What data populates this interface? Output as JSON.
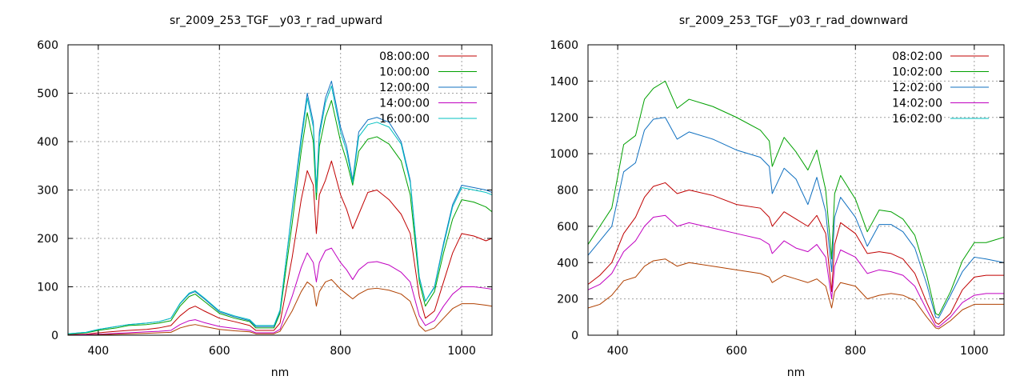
{
  "chart_data": [
    {
      "type": "line",
      "title": "sr_2009_253_TGF__y03_r_rad_upward",
      "xlabel": "nm",
      "ylabel": "",
      "xlim": [
        350,
        1050
      ],
      "ylim": [
        0,
        600
      ],
      "xticks": [
        400,
        600,
        800,
        1000
      ],
      "yticks": [
        0,
        100,
        200,
        300,
        400,
        500,
        600
      ],
      "grid": true,
      "legend_position": "top-right",
      "series": [
        {
          "name": "08:00:00",
          "color": "#c00000",
          "x": [
            350,
            380,
            400,
            430,
            450,
            480,
            500,
            520,
            535,
            550,
            560,
            575,
            600,
            625,
            650,
            660,
            690,
            700,
            720,
            735,
            745,
            755,
            760,
            765,
            775,
            785,
            800,
            810,
            820,
            830,
            845,
            860,
            880,
            900,
            915,
            930,
            940,
            955,
            970,
            985,
            1000,
            1020,
            1040,
            1050
          ],
          "y": [
            1,
            2,
            5,
            8,
            10,
            12,
            15,
            20,
            40,
            55,
            60,
            50,
            35,
            28,
            20,
            10,
            10,
            25,
            160,
            280,
            340,
            310,
            210,
            290,
            320,
            360,
            290,
            260,
            220,
            250,
            295,
            300,
            280,
            250,
            210,
            80,
            35,
            50,
            110,
            170,
            210,
            205,
            195,
            200
          ]
        },
        {
          "name": "10:00:00",
          "color": "#00a000",
          "x": [
            350,
            380,
            400,
            430,
            450,
            480,
            500,
            520,
            535,
            550,
            560,
            575,
            600,
            625,
            650,
            660,
            690,
            700,
            720,
            735,
            745,
            755,
            760,
            765,
            775,
            785,
            800,
            810,
            820,
            830,
            845,
            860,
            880,
            900,
            915,
            930,
            940,
            955,
            970,
            985,
            1000,
            1020,
            1040,
            1050
          ],
          "y": [
            2,
            5,
            10,
            15,
            20,
            22,
            25,
            30,
            60,
            80,
            85,
            70,
            45,
            35,
            28,
            15,
            15,
            45,
            230,
            380,
            460,
            400,
            280,
            390,
            450,
            485,
            400,
            360,
            310,
            380,
            405,
            410,
            395,
            360,
            290,
            110,
            60,
            90,
            170,
            240,
            280,
            275,
            265,
            255
          ]
        },
        {
          "name": "12:00:00",
          "color": "#1070c0",
          "x": [
            350,
            380,
            400,
            430,
            450,
            480,
            500,
            520,
            535,
            550,
            560,
            575,
            600,
            625,
            650,
            660,
            690,
            700,
            720,
            735,
            745,
            755,
            760,
            765,
            775,
            785,
            800,
            810,
            820,
            830,
            845,
            860,
            880,
            900,
            915,
            930,
            940,
            955,
            970,
            985,
            1000,
            1020,
            1040,
            1050
          ],
          "y": [
            3,
            6,
            12,
            18,
            22,
            25,
            28,
            35,
            65,
            85,
            90,
            75,
            48,
            38,
            30,
            18,
            18,
            50,
            260,
            410,
            500,
            440,
            300,
            420,
            490,
            525,
            430,
            390,
            320,
            420,
            445,
            450,
            440,
            400,
            320,
            120,
            70,
            100,
            190,
            270,
            310,
            305,
            300,
            295
          ]
        },
        {
          "name": "14:00:00",
          "color": "#c000c0",
          "x": [
            350,
            380,
            400,
            430,
            450,
            480,
            500,
            520,
            535,
            550,
            560,
            575,
            600,
            625,
            650,
            660,
            690,
            700,
            720,
            735,
            745,
            755,
            760,
            765,
            775,
            785,
            800,
            810,
            820,
            830,
            845,
            860,
            880,
            900,
            915,
            930,
            940,
            955,
            970,
            985,
            1000,
            1020,
            1040,
            1050
          ],
          "y": [
            0,
            1,
            2,
            4,
            5,
            7,
            8,
            10,
            22,
            30,
            32,
            26,
            18,
            14,
            10,
            5,
            5,
            12,
            80,
            140,
            170,
            150,
            110,
            150,
            175,
            180,
            150,
            135,
            115,
            135,
            150,
            152,
            145,
            130,
            110,
            40,
            20,
            30,
            60,
            85,
            100,
            100,
            97,
            95
          ]
        },
        {
          "name": "16:00:00",
          "color": "#00c0c0",
          "x": [
            350,
            380,
            400,
            430,
            450,
            480,
            500,
            520,
            535,
            550,
            560,
            575,
            600,
            625,
            650,
            660,
            690,
            700,
            720,
            735,
            745,
            755,
            760,
            765,
            775,
            785,
            800,
            810,
            820,
            830,
            845,
            860,
            880,
            900,
            915,
            930,
            940,
            955,
            970,
            985,
            1000,
            1020,
            1040,
            1050
          ],
          "y": [
            3,
            6,
            12,
            18,
            22,
            25,
            28,
            35,
            66,
            87,
            92,
            77,
            50,
            40,
            32,
            20,
            20,
            52,
            255,
            400,
            490,
            430,
            295,
            410,
            480,
            515,
            420,
            380,
            315,
            410,
            435,
            440,
            430,
            395,
            315,
            118,
            70,
            98,
            185,
            265,
            305,
            300,
            295,
            290
          ]
        },
        {
          "name": "",
          "color": "#b04000",
          "x": [
            350,
            380,
            400,
            430,
            450,
            480,
            500,
            520,
            535,
            550,
            560,
            575,
            600,
            625,
            650,
            660,
            690,
            700,
            720,
            735,
            745,
            755,
            760,
            765,
            775,
            785,
            800,
            810,
            820,
            830,
            845,
            860,
            880,
            900,
            915,
            930,
            940,
            955,
            970,
            985,
            1000,
            1020,
            1040,
            1050
          ],
          "y": [
            0,
            0,
            1,
            2,
            3,
            4,
            5,
            6,
            15,
            20,
            22,
            18,
            12,
            9,
            7,
            3,
            3,
            8,
            50,
            90,
            110,
            100,
            60,
            90,
            110,
            115,
            95,
            85,
            75,
            85,
            95,
            97,
            93,
            85,
            70,
            20,
            8,
            15,
            35,
            55,
            65,
            65,
            62,
            60
          ]
        }
      ]
    },
    {
      "type": "line",
      "title": "sr_2009_253_TGF__y03_r_rad_downward",
      "xlabel": "nm",
      "ylabel": "",
      "xlim": [
        350,
        1050
      ],
      "ylim": [
        0,
        1600
      ],
      "xticks": [
        400,
        600,
        800,
        1000
      ],
      "yticks": [
        0,
        200,
        400,
        600,
        800,
        1000,
        1200,
        1400,
        1600
      ],
      "grid": true,
      "legend_position": "top-right",
      "series": [
        {
          "name": "08:02:00",
          "color": "#c00000",
          "x": [
            350,
            370,
            390,
            410,
            430,
            445,
            460,
            480,
            500,
            520,
            560,
            600,
            640,
            655,
            660,
            680,
            700,
            720,
            735,
            750,
            760,
            765,
            775,
            800,
            820,
            840,
            860,
            880,
            900,
            920,
            935,
            940,
            960,
            980,
            1000,
            1020,
            1050
          ],
          "y": [
            280,
            330,
            400,
            560,
            650,
            760,
            820,
            840,
            780,
            800,
            770,
            720,
            700,
            650,
            600,
            680,
            640,
            600,
            660,
            560,
            240,
            500,
            620,
            560,
            450,
            460,
            450,
            420,
            340,
            180,
            70,
            60,
            120,
            250,
            320,
            330,
            330
          ]
        },
        {
          "name": "10:02:00",
          "color": "#00a000",
          "x": [
            350,
            370,
            390,
            410,
            430,
            445,
            460,
            480,
            500,
            520,
            560,
            600,
            640,
            655,
            660,
            680,
            700,
            720,
            735,
            750,
            760,
            765,
            775,
            800,
            820,
            840,
            860,
            880,
            900,
            920,
            935,
            940,
            960,
            980,
            1000,
            1020,
            1050
          ],
          "y": [
            500,
            600,
            700,
            1050,
            1100,
            1300,
            1360,
            1400,
            1250,
            1300,
            1260,
            1200,
            1130,
            1070,
            930,
            1090,
            1010,
            910,
            1020,
            800,
            420,
            780,
            880,
            750,
            570,
            690,
            680,
            640,
            550,
            330,
            120,
            110,
            240,
            410,
            510,
            510,
            540
          ]
        },
        {
          "name": "12:02:00",
          "color": "#1070c0",
          "x": [
            350,
            370,
            390,
            410,
            430,
            445,
            460,
            480,
            500,
            520,
            560,
            600,
            640,
            655,
            660,
            680,
            700,
            720,
            735,
            750,
            760,
            765,
            775,
            800,
            820,
            840,
            860,
            880,
            900,
            920,
            935,
            940,
            960,
            980,
            1000,
            1020,
            1050
          ],
          "y": [
            440,
            520,
            600,
            900,
            950,
            1130,
            1190,
            1200,
            1080,
            1120,
            1080,
            1020,
            980,
            930,
            780,
            920,
            860,
            720,
            870,
            680,
            350,
            650,
            760,
            650,
            490,
            610,
            610,
            570,
            480,
            280,
            100,
            95,
            220,
            350,
            430,
            420,
            400
          ]
        },
        {
          "name": "14:02:00",
          "color": "#c000c0",
          "x": [
            350,
            370,
            390,
            410,
            430,
            445,
            460,
            480,
            500,
            520,
            560,
            600,
            640,
            655,
            660,
            680,
            700,
            720,
            735,
            750,
            760,
            765,
            775,
            800,
            820,
            840,
            860,
            880,
            900,
            920,
            935,
            940,
            960,
            980,
            1000,
            1020,
            1050
          ],
          "y": [
            250,
            280,
            340,
            460,
            520,
            600,
            650,
            660,
            600,
            620,
            590,
            560,
            530,
            500,
            450,
            520,
            480,
            460,
            500,
            430,
            200,
            380,
            470,
            430,
            340,
            360,
            350,
            330,
            270,
            140,
            50,
            45,
            100,
            180,
            220,
            230,
            230
          ]
        },
        {
          "name": "16:02:00",
          "color": "#00c0c0",
          "x": [],
          "y": []
        },
        {
          "name": "",
          "color": "#b04000",
          "x": [
            350,
            370,
            390,
            410,
            430,
            445,
            460,
            480,
            500,
            520,
            560,
            600,
            640,
            655,
            660,
            680,
            700,
            720,
            735,
            750,
            760,
            765,
            775,
            800,
            820,
            840,
            860,
            880,
            900,
            920,
            935,
            940,
            960,
            980,
            1000,
            1020,
            1050
          ],
          "y": [
            150,
            170,
            220,
            300,
            320,
            380,
            410,
            420,
            380,
            400,
            380,
            360,
            340,
            320,
            290,
            330,
            310,
            290,
            310,
            270,
            150,
            240,
            290,
            270,
            200,
            220,
            230,
            220,
            190,
            100,
            40,
            35,
            80,
            140,
            170,
            170,
            170
          ]
        }
      ]
    }
  ]
}
